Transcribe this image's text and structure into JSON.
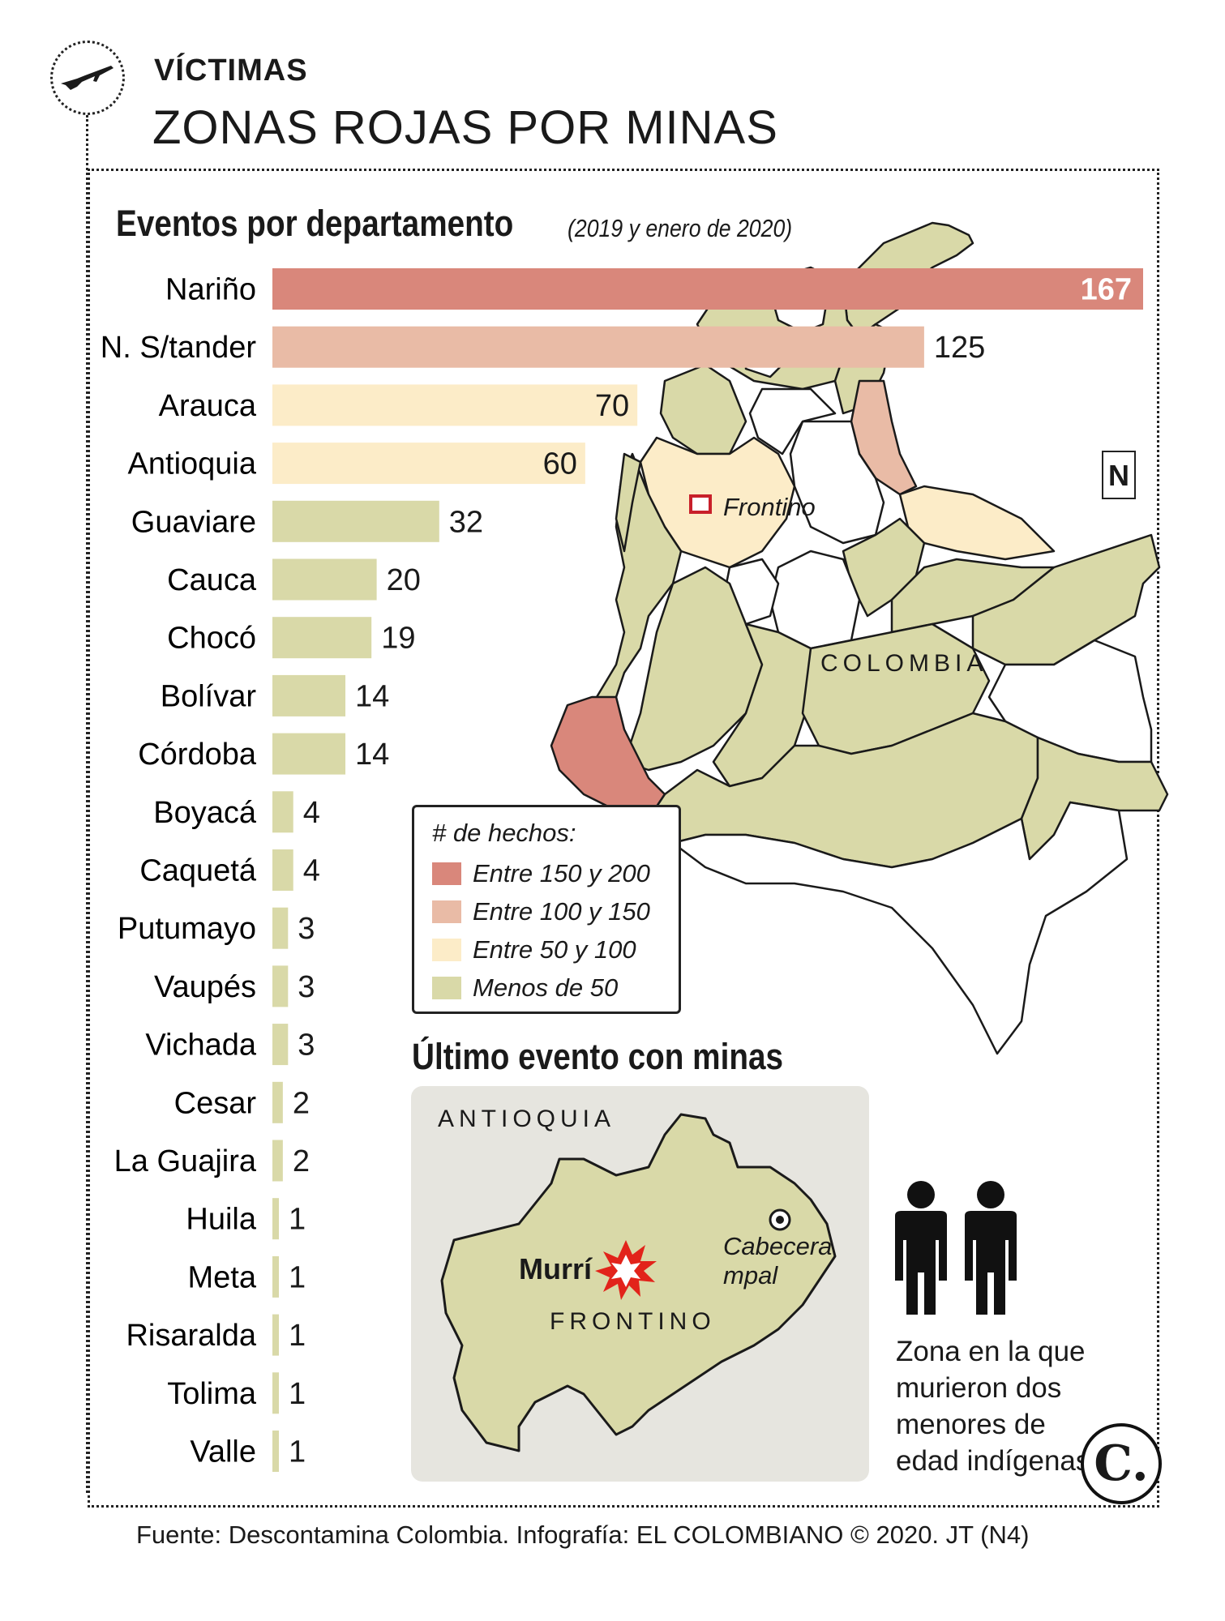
{
  "header": {
    "kicker": "VÍCTIMAS",
    "headline": "ZONAS ROJAS POR MINAS"
  },
  "colors": {
    "range_150_200": "#d9877b",
    "range_100_150": "#e9bba6",
    "range_50_100": "#fcecc8",
    "range_lt_50": "#d9d9a8",
    "map_outline": "#1a1a1a",
    "inset_bg": "#e6e5df"
  },
  "chart_data": {
    "type": "bar",
    "orientation": "horizontal",
    "title": "Eventos por departamento",
    "subtitle": "(2019 y enero de 2020)",
    "categories": [
      "Nariño",
      "N. S/tander",
      "Arauca",
      "Antioquia",
      "Guaviare",
      "Cauca",
      "Chocó",
      "Bolívar",
      "Córdoba",
      "Boyacá",
      "Caquetá",
      "Putumayo",
      "Vaupés",
      "Vichada",
      "Cesar",
      "La Guajira",
      "Huila",
      "Meta",
      "Risaralda",
      "Tolima",
      "Valle"
    ],
    "values": [
      167,
      125,
      70,
      60,
      32,
      20,
      19,
      14,
      14,
      4,
      4,
      3,
      3,
      3,
      2,
      2,
      1,
      1,
      1,
      1,
      1
    ],
    "xlim": [
      0,
      167
    ],
    "grid": false,
    "color_rule": "by range (# de hechos)"
  },
  "map": {
    "country_label": "COLOMBIA",
    "marker_label": "Frontino",
    "north_label": "N",
    "legend": {
      "title": "# de hechos:",
      "items": [
        {
          "label": "Entre 150 y 200",
          "color_key": "range_150_200"
        },
        {
          "label": "Entre 100 y 150",
          "color_key": "range_100_150"
        },
        {
          "label": "Entre 50 y 100",
          "color_key": "range_50_100"
        },
        {
          "label": "Menos de 50",
          "color_key": "range_lt_50"
        }
      ]
    }
  },
  "inset": {
    "title": "Último evento con minas",
    "region_label": "ANTIOQUIA",
    "municipality_label": "FRONTINO",
    "event_label": "Murrí",
    "capital_label_line1": "Cabecera",
    "capital_label_line2": "mpal"
  },
  "note": "Zona en la que murieron dos menores de edad indígenas.",
  "footer": {
    "source": "Fuente: Descontamina Colombia. Infografía: EL COLOMBIANO © 2020. JT (N4)",
    "logo": "C."
  }
}
